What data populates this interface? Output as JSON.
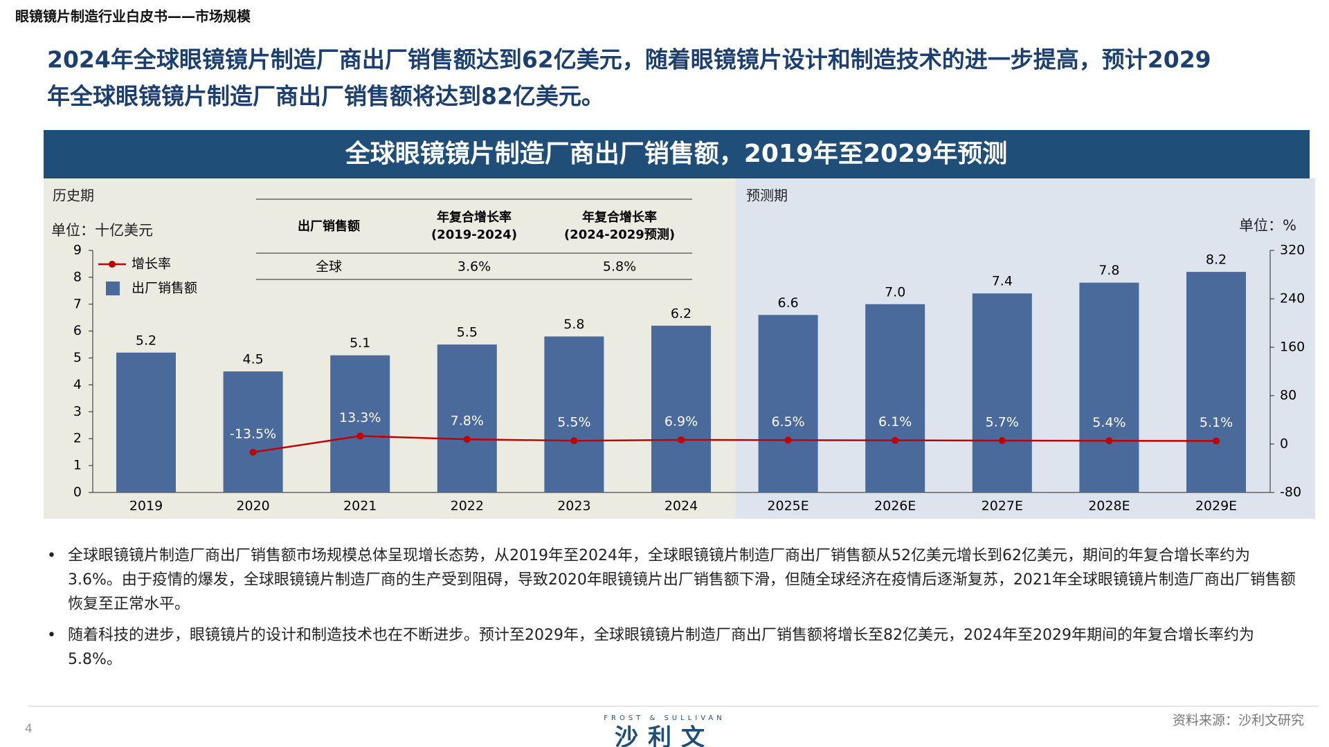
{
  "header": {
    "title": "眼镜镜片制造行业白皮书——市场规模"
  },
  "headline": [
    "2024年全球眼镜镜片制造厂商出厂销售额达到62亿美元，随着眼镜镜片设计和制造技术的进一步提高，预计2029",
    "年全球眼镜镜片制造厂商出厂销售额将达到82亿美元。"
  ],
  "chart_data": {
    "type": "bar",
    "title": "全球眼镜镜片制造厂商出厂销售额，2019年至2029年预测",
    "annotations": {
      "history": "历史期",
      "forecast": "预测期",
      "left_unit": "单位：十亿美元",
      "right_unit": "单位：%"
    },
    "categories": [
      "2019",
      "2020",
      "2021",
      "2022",
      "2023",
      "2024",
      "2025E",
      "2026E",
      "2027E",
      "2028E",
      "2029E"
    ],
    "series": [
      {
        "name": "出厂销售额",
        "type": "bar",
        "color": "#4a6a9c",
        "values": [
          5.2,
          4.5,
          5.1,
          5.5,
          5.8,
          6.2,
          6.6,
          7.0,
          7.4,
          7.8,
          8.2
        ],
        "value_labels": [
          "5.2",
          "4.5",
          "5.1",
          "5.5",
          "5.8",
          "6.2",
          "6.6",
          "7.0",
          "7.4",
          "7.8",
          "8.2"
        ]
      },
      {
        "name": "增长率",
        "type": "line",
        "axis": "y2",
        "color": "#c00000",
        "values": [
          null,
          -13.5,
          13.3,
          7.8,
          5.5,
          6.9,
          6.5,
          6.1,
          5.7,
          5.4,
          5.1
        ],
        "value_labels": [
          null,
          "-13.5%",
          "13.3%",
          "7.8%",
          "5.5%",
          "6.9%",
          "6.5%",
          "6.1%",
          "5.7%",
          "5.4%",
          "5.1%"
        ]
      }
    ],
    "ylim": [
      0,
      9
    ],
    "yticks": [
      0,
      1,
      2,
      3,
      4,
      5,
      6,
      7,
      8,
      9
    ],
    "y2lim": [
      -80,
      320
    ],
    "y2ticks": [
      -80,
      0,
      80,
      160,
      240,
      320
    ],
    "legend": "upper left"
  },
  "table": {
    "header": [
      [
        "出厂销售额"
      ],
      [
        "年复合增长率",
        "(2019-2024)"
      ],
      [
        "年复合增长率",
        "(2024-2029预测)"
      ]
    ],
    "rows": [
      [
        "全球",
        "3.6%",
        "5.8%"
      ]
    ]
  },
  "bullets": [
    "全球眼镜镜片制造厂商出厂销售额市场规模总体呈现增长态势，从2019年至2024年，全球眼镜镜片制造厂商出厂销售额从52亿美元增长到62亿美元，期间的年复合增长率约为3.6%。由于疫情的爆发，全球眼镜镜片制造厂商的生产受到阻碍，导致2020年眼镜镜片出厂销售额下滑，但随全球经济在疫情后逐渐复苏，2021年全球眼镜镜片制造厂商出厂销售额恢复至正常水平。",
    "随着科技的进步，眼镜镜片的设计和制造技术也在不断进步。预计至2029年，全球眼镜镜片制造厂商出厂销售额将增长至82亿美元，2024年至2029年期间的年复合增长率约为5.8%。"
  ],
  "footer": {
    "page": "4",
    "logo_top": "FROST & SULLIVAN",
    "logo": "沙利文",
    "source": "资料来源：沙利文研究"
  }
}
